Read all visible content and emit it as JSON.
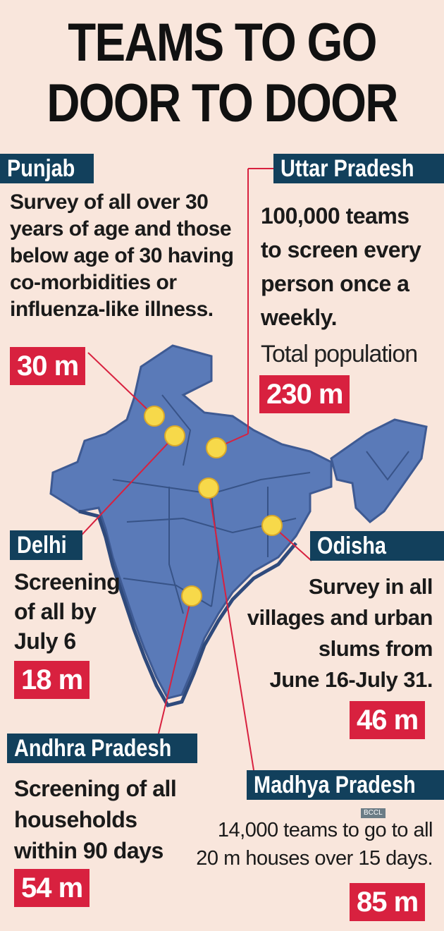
{
  "title_line1": "TEAMS TO GO",
  "title_line2": "DOOR TO DOOR",
  "punjab": {
    "name": "Punjab",
    "lines": [
      "Survey of all over 30",
      "years of age and those",
      "below age of 30 having",
      "co-morbidities or",
      "influenza-like illness."
    ],
    "count": "30 m"
  },
  "up": {
    "name": "Uttar Pradesh",
    "lines": [
      "100,000 teams",
      "to screen every",
      "person once a",
      "weekly."
    ],
    "pop_label": "Total population",
    "count": "230 m"
  },
  "delhi": {
    "name": "Delhi",
    "lines": [
      "Screening",
      "of all by",
      "July 6"
    ],
    "count": "18 m"
  },
  "odisha": {
    "name": "Odisha",
    "lines": [
      "Survey in all",
      "villages and urban",
      "slums from",
      "June 16-July 31."
    ],
    "count": "46 m"
  },
  "ap": {
    "name": "Andhra Pradesh",
    "lines": [
      "Screening of all",
      "households",
      "within 90 days"
    ],
    "count": "54 m"
  },
  "mp": {
    "name": "Madhya Pradesh",
    "lines": [
      "14,000 teams to go to all",
      "20 m houses over 15 days."
    ],
    "count": "85 m"
  },
  "credit": "BCCL",
  "colors": {
    "background": "#f9e6dc",
    "tag": "#12405c",
    "count_box": "#d8213f",
    "map": "#5a7ab8",
    "marker": "#f7d94a",
    "leader": "#d8213f"
  }
}
